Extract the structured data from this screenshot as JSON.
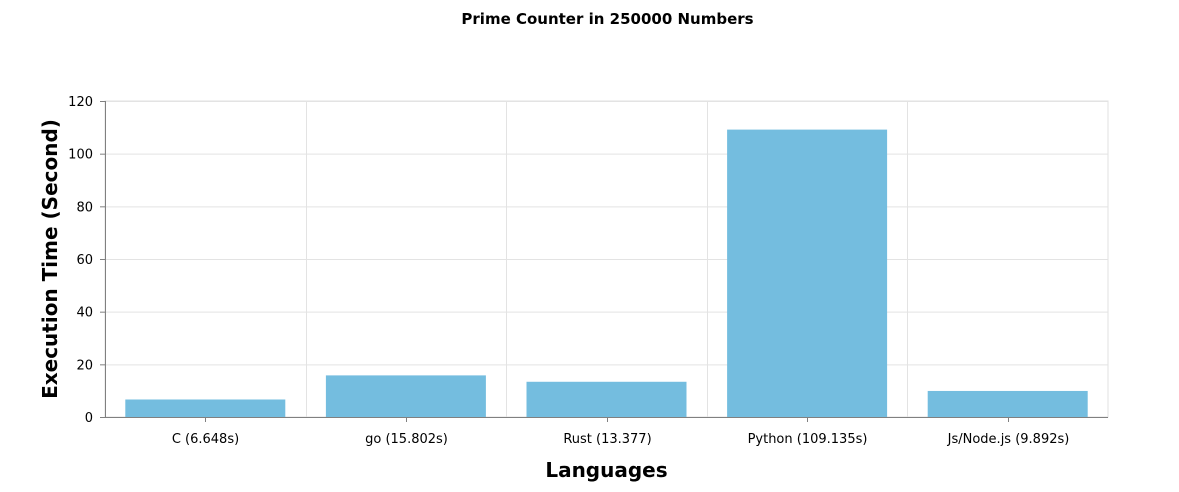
{
  "chart_data": {
    "type": "bar",
    "title": "Prime Counter in 250000 Numbers",
    "xlabel": "Languages",
    "ylabel": "Execution Time (Second)",
    "categories": [
      "C (6.648s)",
      "go (15.802s)",
      "Rust (13.377)",
      "Python (109.135s)",
      "Js/Node.js (9.892s)"
    ],
    "values": [
      6.648,
      15.802,
      13.377,
      109.135,
      9.892
    ],
    "ylim": [
      0,
      120
    ],
    "yticks": [
      0,
      20,
      40,
      60,
      80,
      100,
      120
    ],
    "grid": true,
    "bar_color": "#74bddf"
  }
}
